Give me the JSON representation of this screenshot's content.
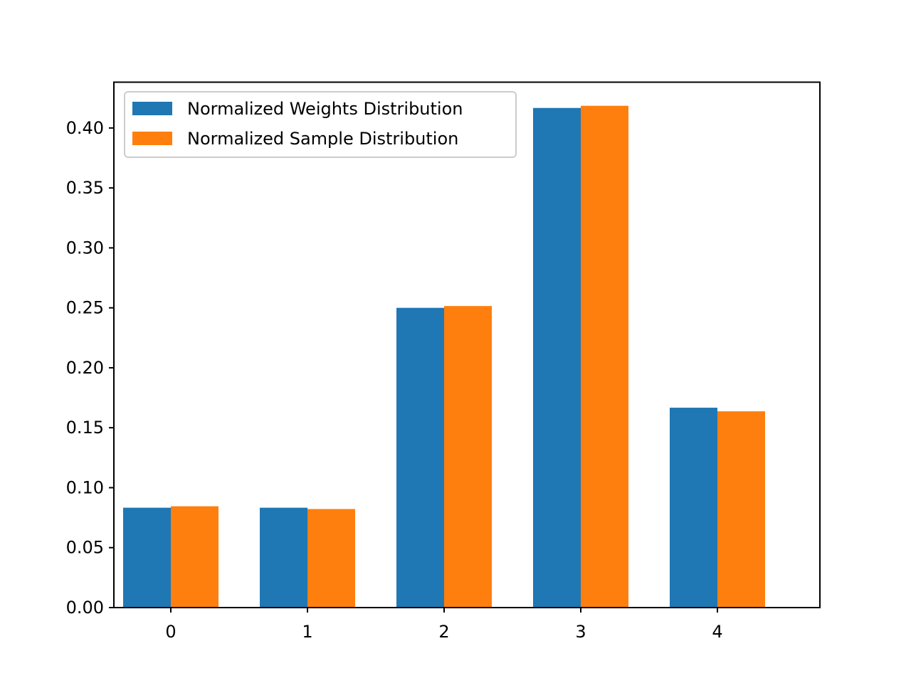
{
  "chart_data": {
    "type": "bar",
    "categories": [
      "0",
      "1",
      "2",
      "3",
      "4"
    ],
    "series": [
      {
        "name": "Normalized Weights Distribution",
        "color": "#1f77b4",
        "values": [
          0.0833,
          0.0833,
          0.25,
          0.4167,
          0.1667
        ]
      },
      {
        "name": "Normalized Sample Distribution",
        "color": "#ff7f0e",
        "values": [
          0.0845,
          0.0822,
          0.2515,
          0.4185,
          0.1637
        ]
      }
    ],
    "title": "",
    "xlabel": "",
    "ylabel": "",
    "ylim": [
      0,
      0.4382
    ],
    "yticks": [
      "0.00",
      "0.05",
      "0.10",
      "0.15",
      "0.20",
      "0.25",
      "0.30",
      "0.35",
      "0.40"
    ],
    "grid": false,
    "legend_position": "top-left"
  }
}
